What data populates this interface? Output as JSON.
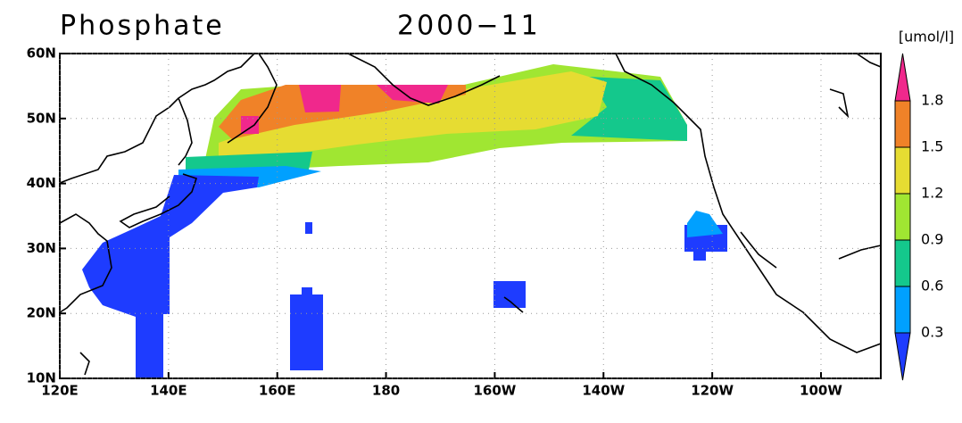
{
  "title": "Phosphate",
  "date": "2000−11",
  "map": {
    "lonlim": [
      120,
      271
    ],
    "latlim": [
      10,
      60
    ],
    "lonticks": [
      {
        "value": 120,
        "label": "120E"
      },
      {
        "value": 140,
        "label": "140E"
      },
      {
        "value": 160,
        "label": "160E"
      },
      180,
      {
        "value": 200,
        "label": "160W"
      },
      {
        "value": 220,
        "label": "140W"
      },
      {
        "value": 240,
        "label": "120W"
      },
      {
        "value": 260,
        "label": "100W"
      }
    ],
    "latticks": [
      {
        "value": 10,
        "label": "10N"
      },
      {
        "value": 20,
        "label": "20N"
      },
      {
        "value": 30,
        "label": "30N"
      },
      {
        "value": 40,
        "label": "40N"
      },
      {
        "value": 50,
        "label": "50N"
      },
      {
        "value": 60,
        "label": "60N"
      }
    ],
    "grid": true
  },
  "colorbar": {
    "units": "[umol/l]",
    "levels": [
      0.3,
      0.6,
      0.9,
      1.2,
      1.5,
      1.8
    ],
    "colors": [
      "#1e3cff",
      "#00a0ff",
      "#14c88c",
      "#a0e632",
      "#e6dc32",
      "#f08228",
      "#f0288c"
    ]
  }
}
